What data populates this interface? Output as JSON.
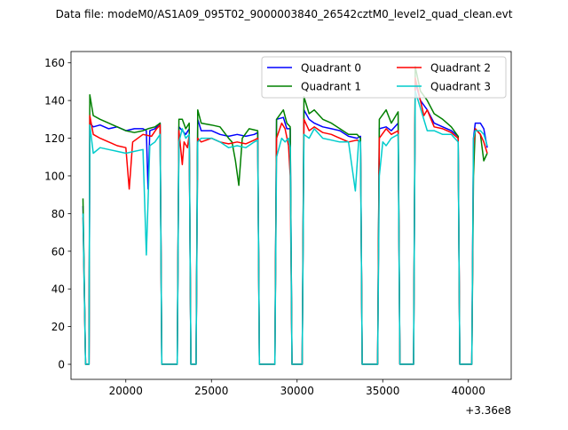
{
  "suptitle": "Data file: modeM0/AS1A09_095T02_9000003840_26542cztM0_level2_quad_clean.evt",
  "colors": {
    "Quadrant 0": "#0000ff",
    "Quadrant 1": "#008000",
    "Quadrant 2": "#ff0000",
    "Quadrant 3": "#00cccc"
  },
  "chart_data": {
    "type": "line",
    "title": "",
    "xlabel": "",
    "ylabel": "",
    "x_offset_label": "+3.36e8",
    "xlim": [
      16800,
      42500
    ],
    "ylim": [
      -8,
      166
    ],
    "x_ticks": [
      20000,
      25000,
      30000,
      35000,
      40000
    ],
    "x_tick_labels": [
      "20000",
      "25000",
      "30000",
      "35000",
      "40000"
    ],
    "y_ticks": [
      0,
      20,
      40,
      60,
      80,
      100,
      120,
      140,
      160
    ],
    "y_tick_labels": [
      "0",
      "20",
      "40",
      "60",
      "80",
      "100",
      "120",
      "140",
      "160"
    ],
    "grid": false,
    "legend": {
      "placement": "top-right",
      "columns": 2
    },
    "series": [
      {
        "name": "Quadrant 0",
        "points": [
          [
            17500,
            84
          ],
          [
            17650,
            0
          ],
          [
            17850,
            0
          ],
          [
            17900,
            128
          ],
          [
            18100,
            126
          ],
          [
            18500,
            127
          ],
          [
            19000,
            125
          ],
          [
            19500,
            126
          ],
          [
            20000,
            124
          ],
          [
            20500,
            125
          ],
          [
            21000,
            125
          ],
          [
            21200,
            124
          ],
          [
            21300,
            93
          ],
          [
            21400,
            124
          ],
          [
            21700,
            125
          ],
          [
            22000,
            128
          ],
          [
            22100,
            0
          ],
          [
            23000,
            0
          ],
          [
            23100,
            126
          ],
          [
            23300,
            124
          ],
          [
            23500,
            122
          ],
          [
            23700,
            125
          ],
          [
            23800,
            0
          ],
          [
            24100,
            0
          ],
          [
            24200,
            130
          ],
          [
            24400,
            124
          ],
          [
            25000,
            124
          ],
          [
            25500,
            122
          ],
          [
            26000,
            121
          ],
          [
            26500,
            122
          ],
          [
            27000,
            121
          ],
          [
            27500,
            122
          ],
          [
            27700,
            123
          ],
          [
            27800,
            0
          ],
          [
            28700,
            0
          ],
          [
            28800,
            130
          ],
          [
            29200,
            131
          ],
          [
            29400,
            125
          ],
          [
            29600,
            125
          ],
          [
            29700,
            0
          ],
          [
            30300,
            0
          ],
          [
            30400,
            135
          ],
          [
            30700,
            130
          ],
          [
            31000,
            128
          ],
          [
            31500,
            126
          ],
          [
            32000,
            125
          ],
          [
            32500,
            124
          ],
          [
            33000,
            121
          ],
          [
            33500,
            120
          ],
          [
            33700,
            121
          ],
          [
            33800,
            0
          ],
          [
            34700,
            0
          ],
          [
            34800,
            125
          ],
          [
            35200,
            126
          ],
          [
            35500,
            124
          ],
          [
            35900,
            128
          ],
          [
            36000,
            0
          ],
          [
            36800,
            0
          ],
          [
            36900,
            150
          ],
          [
            37200,
            140
          ],
          [
            37600,
            135
          ],
          [
            38000,
            128
          ],
          [
            38500,
            126
          ],
          [
            39000,
            124
          ],
          [
            39400,
            121
          ],
          [
            39500,
            0
          ],
          [
            40200,
            0
          ],
          [
            40300,
            120
          ],
          [
            40400,
            128
          ],
          [
            40700,
            128
          ],
          [
            40900,
            125
          ],
          [
            41100,
            115
          ]
        ]
      },
      {
        "name": "Quadrant 1",
        "points": [
          [
            17500,
            88
          ],
          [
            17650,
            0
          ],
          [
            17850,
            0
          ],
          [
            17900,
            143
          ],
          [
            18100,
            132
          ],
          [
            18500,
            130
          ],
          [
            19000,
            128
          ],
          [
            19500,
            126
          ],
          [
            20000,
            124
          ],
          [
            20500,
            123
          ],
          [
            21000,
            124
          ],
          [
            21300,
            125
          ],
          [
            21700,
            126
          ],
          [
            22000,
            128
          ],
          [
            22100,
            0
          ],
          [
            23000,
            0
          ],
          [
            23100,
            130
          ],
          [
            23300,
            130
          ],
          [
            23500,
            125
          ],
          [
            23700,
            128
          ],
          [
            23800,
            0
          ],
          [
            24100,
            0
          ],
          [
            24200,
            135
          ],
          [
            24400,
            128
          ],
          [
            25000,
            127
          ],
          [
            25500,
            126
          ],
          [
            26000,
            120
          ],
          [
            26200,
            118
          ],
          [
            26400,
            108
          ],
          [
            26600,
            95
          ],
          [
            26800,
            120
          ],
          [
            27200,
            125
          ],
          [
            27700,
            124
          ],
          [
            27800,
            0
          ],
          [
            28700,
            0
          ],
          [
            28800,
            130
          ],
          [
            29200,
            135
          ],
          [
            29400,
            128
          ],
          [
            29600,
            126
          ],
          [
            29700,
            0
          ],
          [
            30300,
            0
          ],
          [
            30400,
            142
          ],
          [
            30700,
            133
          ],
          [
            31000,
            135
          ],
          [
            31500,
            130
          ],
          [
            32000,
            128
          ],
          [
            32500,
            125
          ],
          [
            33000,
            122
          ],
          [
            33500,
            122
          ],
          [
            33700,
            120
          ],
          [
            33800,
            0
          ],
          [
            34700,
            0
          ],
          [
            34800,
            130
          ],
          [
            35200,
            135
          ],
          [
            35500,
            128
          ],
          [
            35900,
            134
          ],
          [
            36000,
            0
          ],
          [
            36800,
            0
          ],
          [
            36900,
            158
          ],
          [
            37200,
            145
          ],
          [
            37600,
            140
          ],
          [
            38000,
            133
          ],
          [
            38500,
            130
          ],
          [
            39000,
            126
          ],
          [
            39400,
            121
          ],
          [
            39500,
            0
          ],
          [
            40200,
            0
          ],
          [
            40300,
            100
          ],
          [
            40400,
            125
          ],
          [
            40700,
            122
          ],
          [
            40900,
            108
          ],
          [
            41100,
            112
          ]
        ]
      },
      {
        "name": "Quadrant 2",
        "points": [
          [
            17500,
            78
          ],
          [
            17650,
            0
          ],
          [
            17850,
            0
          ],
          [
            17900,
            132
          ],
          [
            18100,
            122
          ],
          [
            18500,
            120
          ],
          [
            19000,
            118
          ],
          [
            19500,
            116
          ],
          [
            20000,
            115
          ],
          [
            20200,
            93
          ],
          [
            20400,
            118
          ],
          [
            21000,
            122
          ],
          [
            21500,
            121
          ],
          [
            21800,
            125
          ],
          [
            22000,
            127
          ],
          [
            22100,
            0
          ],
          [
            23000,
            0
          ],
          [
            23100,
            124
          ],
          [
            23300,
            106
          ],
          [
            23400,
            118
          ],
          [
            23600,
            115
          ],
          [
            23700,
            122
          ],
          [
            23800,
            0
          ],
          [
            24100,
            0
          ],
          [
            24200,
            120
          ],
          [
            24400,
            118
          ],
          [
            25000,
            120
          ],
          [
            25500,
            118
          ],
          [
            26000,
            117
          ],
          [
            26500,
            118
          ],
          [
            27000,
            117
          ],
          [
            27500,
            119
          ],
          [
            27700,
            120
          ],
          [
            27800,
            0
          ],
          [
            28700,
            0
          ],
          [
            28800,
            120
          ],
          [
            29100,
            128
          ],
          [
            29300,
            125
          ],
          [
            29500,
            116
          ],
          [
            29600,
            100
          ],
          [
            29700,
            0
          ],
          [
            30300,
            0
          ],
          [
            30400,
            130
          ],
          [
            30700,
            124
          ],
          [
            31000,
            126
          ],
          [
            31500,
            123
          ],
          [
            32000,
            122
          ],
          [
            32500,
            120
          ],
          [
            33000,
            118
          ],
          [
            33500,
            119
          ],
          [
            33700,
            118
          ],
          [
            33800,
            0
          ],
          [
            34700,
            0
          ],
          [
            34800,
            120
          ],
          [
            35200,
            125
          ],
          [
            35500,
            122
          ],
          [
            35900,
            124
          ],
          [
            36000,
            0
          ],
          [
            36800,
            0
          ],
          [
            36900,
            152
          ],
          [
            37200,
            140
          ],
          [
            37400,
            132
          ],
          [
            37600,
            135
          ],
          [
            38000,
            126
          ],
          [
            38500,
            125
          ],
          [
            39000,
            123
          ],
          [
            39400,
            120
          ],
          [
            39500,
            0
          ],
          [
            40200,
            0
          ],
          [
            40300,
            115
          ],
          [
            40400,
            125
          ],
          [
            40700,
            122
          ],
          [
            40900,
            118
          ],
          [
            41100,
            112
          ]
        ]
      },
      {
        "name": "Quadrant 3",
        "points": [
          [
            17500,
            80
          ],
          [
            17650,
            0
          ],
          [
            17850,
            0
          ],
          [
            17900,
            127
          ],
          [
            18100,
            112
          ],
          [
            18500,
            115
          ],
          [
            19000,
            114
          ],
          [
            19500,
            113
          ],
          [
            20000,
            112
          ],
          [
            20500,
            113
          ],
          [
            21000,
            114
          ],
          [
            21200,
            58
          ],
          [
            21400,
            116
          ],
          [
            21700,
            118
          ],
          [
            22000,
            122
          ],
          [
            22100,
            0
          ],
          [
            23000,
            0
          ],
          [
            23100,
            118
          ],
          [
            23300,
            125
          ],
          [
            23500,
            120
          ],
          [
            23700,
            122
          ],
          [
            23800,
            0
          ],
          [
            24100,
            0
          ],
          [
            24200,
            118
          ],
          [
            24400,
            120
          ],
          [
            25000,
            120
          ],
          [
            25500,
            118
          ],
          [
            26000,
            115
          ],
          [
            26500,
            116
          ],
          [
            27000,
            115
          ],
          [
            27500,
            118
          ],
          [
            27700,
            119
          ],
          [
            27800,
            0
          ],
          [
            28700,
            0
          ],
          [
            28800,
            110
          ],
          [
            29100,
            120
          ],
          [
            29300,
            118
          ],
          [
            29500,
            120
          ],
          [
            29600,
            115
          ],
          [
            29700,
            0
          ],
          [
            30300,
            0
          ],
          [
            30400,
            122
          ],
          [
            30700,
            120
          ],
          [
            31000,
            125
          ],
          [
            31500,
            120
          ],
          [
            32000,
            119
          ],
          [
            32500,
            118
          ],
          [
            33000,
            118
          ],
          [
            33400,
            92
          ],
          [
            33600,
            119
          ],
          [
            33700,
            118
          ],
          [
            33800,
            0
          ],
          [
            34700,
            0
          ],
          [
            34800,
            100
          ],
          [
            35000,
            118
          ],
          [
            35200,
            116
          ],
          [
            35500,
            120
          ],
          [
            35900,
            122
          ],
          [
            36000,
            0
          ],
          [
            36800,
            0
          ],
          [
            36900,
            145
          ],
          [
            37200,
            136
          ],
          [
            37600,
            124
          ],
          [
            38000,
            124
          ],
          [
            38500,
            122
          ],
          [
            39000,
            122
          ],
          [
            39400,
            118
          ],
          [
            39500,
            0
          ],
          [
            40200,
            0
          ],
          [
            40300,
            120
          ],
          [
            40400,
            124
          ],
          [
            40700,
            124
          ],
          [
            40900,
            122
          ],
          [
            41100,
            116
          ]
        ]
      }
    ]
  }
}
